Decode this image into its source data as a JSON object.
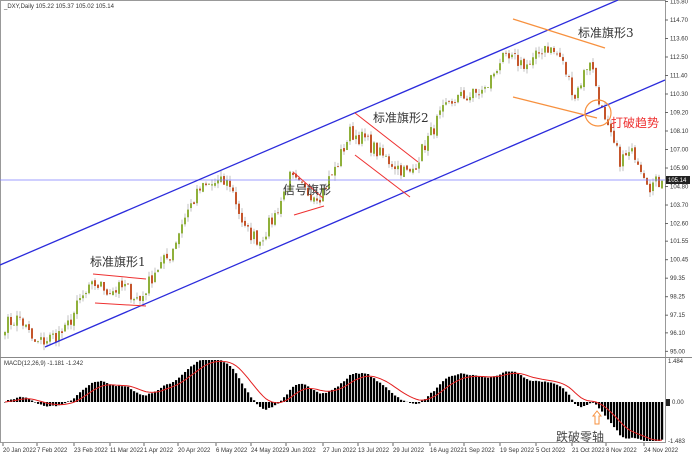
{
  "header": {
    "title": "_DXY,Daily  105.22 105.37 105.02 105.14"
  },
  "macd": {
    "label": "MACD(12,26,9) -1.181 -1.242",
    "axis": [
      "1.484",
      "0.00",
      "-1.483"
    ]
  },
  "annotations": {
    "flag1": "标准旗形1",
    "signal_flag": "信号旗形",
    "flag2": "标准旗形2",
    "flag3": "标准旗形3",
    "break_trend": "打破趋势",
    "break_zero": "跌破零轴"
  },
  "colors": {
    "bull": "#8fb03a",
    "bear": "#c5552b",
    "channel": "#2b2bdc",
    "hline": "#7f7fff",
    "flag_red": "#ee3030",
    "flag_orange": "#f7913f",
    "signal": "#e42020",
    "hist": "#000000"
  },
  "chart_data": {
    "type": "candlestick",
    "symbol": "_DXY",
    "timeframe": "Daily",
    "last_ohlc": {
      "open": 105.22,
      "high": 105.37,
      "low": 105.02,
      "close": 105.14
    },
    "current_price_label": "105.14",
    "price_ticks": [
      "115.80",
      "114.70",
      "113.60",
      "112.50",
      "111.40",
      "110.30",
      "109.20",
      "108.10",
      "107.00",
      "105.90",
      "104.80",
      "103.70",
      "102.60",
      "101.55",
      "100.45",
      "99.35",
      "98.25",
      "97.15",
      "96.10",
      "95.00"
    ],
    "date_ticks": [
      "20 Jan 2022",
      "7 Feb 2022",
      "23 Feb 2022",
      "11 Mar 2022",
      "1 Apr 2022",
      "20 Apr 2022",
      "6 May 2022",
      "24 May 2022",
      "9 Jun 2022",
      "27 Jun 2022",
      "13 Jul 2022",
      "29 Jul 2022",
      "16 Aug 2022",
      "1 Sep 2022",
      "19 Sep 2022",
      "5 Oct 2022",
      "21 Oct 2022",
      "8 Nov 2022",
      "24 Nov 2022"
    ],
    "weekly_closes_from_20_Jan_2022": [
      96.6,
      97.0,
      95.4,
      95.8,
      96.2,
      98.0,
      99.0,
      98.6,
      98.8,
      98.0,
      99.8,
      100.7,
      103.1,
      104.6,
      105.0,
      105.0,
      102.2,
      101.6,
      103.1,
      105.3,
      104.5,
      104.3,
      105.8,
      108.0,
      107.6,
      106.7,
      106.1,
      105.5,
      107.3,
      109.0,
      110.0,
      110.2,
      110.5,
      112.3,
      112.3,
      112.0,
      113.2,
      112.5,
      110.2,
      112.4,
      108.5,
      106.4,
      106.8,
      104.9,
      105.14
    ],
    "indicator": "MACD(12,26,9)",
    "macd_last": {
      "main": -1.181,
      "signal": -1.242
    }
  }
}
